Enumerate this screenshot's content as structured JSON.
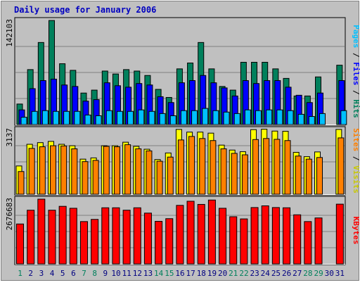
{
  "chart_data": [
    {
      "type": "bar",
      "title": "Daily usage for January 2006",
      "categories": [
        "1",
        "2",
        "3",
        "4",
        "5",
        "6",
        "7",
        "8",
        "9",
        "10",
        "11",
        "12",
        "13",
        "14",
        "15",
        "16",
        "17",
        "18",
        "19",
        "20",
        "21",
        "22",
        "23",
        "24",
        "25",
        "26",
        "27",
        "28",
        "29",
        "30",
        "31"
      ],
      "weekend_days": [
        "1",
        "7",
        "8",
        "14",
        "15",
        "21",
        "22",
        "28",
        "29"
      ],
      "ymax_label": "142103",
      "ylim": [
        0,
        142103
      ],
      "grid": true,
      "series": [
        {
          "name": "Hits",
          "color": "#00805c",
          "values": [
            28000,
            75000,
            112000,
            142000,
            83000,
            74000,
            43000,
            47000,
            73000,
            69000,
            75000,
            73000,
            67000,
            48000,
            37000,
            76000,
            84000,
            112000,
            76000,
            52000,
            47000,
            85000,
            85000,
            85000,
            76000,
            63000,
            39000,
            39000,
            65000,
            0,
            81000
          ]
        },
        {
          "name": "Files",
          "color": "#0000ff",
          "values": [
            20000,
            49000,
            60000,
            62000,
            54000,
            52000,
            32000,
            34000,
            57000,
            53000,
            51000,
            56000,
            54000,
            38000,
            30000,
            57000,
            60000,
            67000,
            57000,
            50000,
            39000,
            60000,
            56000,
            60000,
            60000,
            51000,
            40000,
            30000,
            43000,
            0,
            60000
          ]
        },
        {
          "name": "Pages",
          "color": "#00c0ff",
          "values": [
            10000,
            18000,
            19000,
            18000,
            18000,
            18000,
            13000,
            12000,
            19000,
            18000,
            18000,
            20000,
            18000,
            15000,
            12000,
            19000,
            19000,
            22000,
            19000,
            17000,
            15000,
            20000,
            19000,
            20000,
            20000,
            19000,
            14000,
            11000,
            15000,
            0,
            19000
          ]
        }
      ]
    },
    {
      "type": "bar",
      "ymax_label": "3137",
      "ylim": [
        0,
        3137
      ],
      "grid": true,
      "series": [
        {
          "name": "Visits",
          "color": "#ffff00",
          "values": [
            1370,
            2420,
            2500,
            2560,
            2420,
            2350,
            1700,
            1760,
            2350,
            2350,
            2520,
            2320,
            2180,
            1680,
            2000,
            3140,
            3010,
            3010,
            2960,
            2380,
            2140,
            2060,
            3130,
            3150,
            3060,
            3050,
            2030,
            1820,
            2050,
            0,
            3140
          ]
        },
        {
          "name": "Sites",
          "color": "#ff8000",
          "values": [
            1100,
            2220,
            2300,
            2350,
            2340,
            2200,
            1580,
            1640,
            2320,
            2300,
            2400,
            2200,
            2100,
            1600,
            1800,
            2630,
            2800,
            2700,
            2600,
            2200,
            1980,
            1910,
            2650,
            2700,
            2660,
            2600,
            1850,
            1700,
            1780,
            0,
            2730
          ]
        }
      ]
    },
    {
      "type": "bar",
      "ymax_label": "2676683",
      "ylim": [
        0,
        2676683
      ],
      "grid": true,
      "series": [
        {
          "name": "KBytes",
          "color": "#ff0000",
          "values": [
            1650000,
            2220000,
            2676683,
            2220000,
            2380000,
            2300000,
            1750000,
            1840000,
            2320000,
            2320000,
            2220000,
            2320000,
            2100000,
            1760000,
            1870000,
            2420000,
            2590000,
            2460000,
            2640000,
            2300000,
            1950000,
            1860000,
            2330000,
            2400000,
            2330000,
            2320000,
            2030000,
            1750000,
            1900000,
            0,
            2470000
          ]
        }
      ]
    }
  ]
}
